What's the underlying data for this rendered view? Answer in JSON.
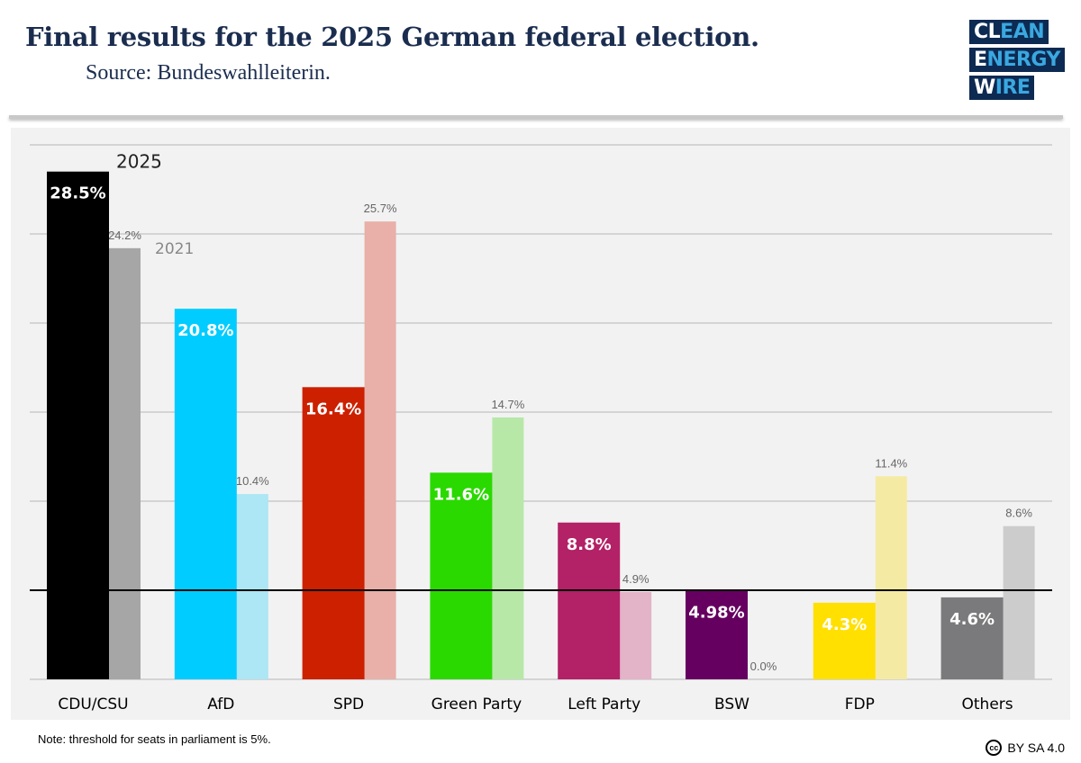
{
  "header": {
    "title": "Final results for the 2025 German federal election.",
    "subtitle": "Source: Bundeswahlleiterin."
  },
  "logo": {
    "lines": [
      "CLEAN",
      "ENERGY",
      "WIRE"
    ]
  },
  "note": "Note: threshold for seats in parliament is 5%.",
  "license": {
    "icon": "cc-icon",
    "text": "BY SA 4.0"
  },
  "chart_data": {
    "type": "bar",
    "categories": [
      "CDU/CSU",
      "AfD",
      "SPD",
      "Green Party",
      "Left Party",
      "BSW",
      "FDP",
      "Others"
    ],
    "series": [
      {
        "name": "2025",
        "values": [
          28.5,
          20.8,
          16.4,
          11.6,
          8.8,
          4.98,
          4.3,
          4.6
        ],
        "labels": [
          "28.5%",
          "20.8%",
          "16.4%",
          "11.6%",
          "8.8%",
          "4.98%",
          "4.3%",
          "4.6%"
        ],
        "colors": [
          "#000000",
          "#00ccff",
          "#cc2000",
          "#2ad900",
          "#b32166",
          "#660060",
          "#ffe000",
          "#7a7a7c"
        ]
      },
      {
        "name": "2021",
        "values": [
          24.2,
          10.4,
          25.7,
          14.7,
          4.9,
          0.0,
          11.4,
          8.6
        ],
        "labels": [
          "24.2%",
          "10.4%",
          "25.7%",
          "14.7%",
          "4.9%",
          "0.0%",
          "11.4%",
          "8.6%"
        ],
        "colors": [
          "#a6a6a6",
          "#ade6f5",
          "#e8b0a8",
          "#b8e8a8",
          "#e3b3c8",
          "#e0c0e0",
          "#f5eaa3",
          "#cccccc"
        ]
      }
    ],
    "threshold": 5,
    "ylim": [
      0,
      30
    ],
    "gridlines": [
      0,
      5,
      10,
      15,
      20,
      25,
      30
    ],
    "grid": true,
    "legend": "direct labels on first group"
  }
}
